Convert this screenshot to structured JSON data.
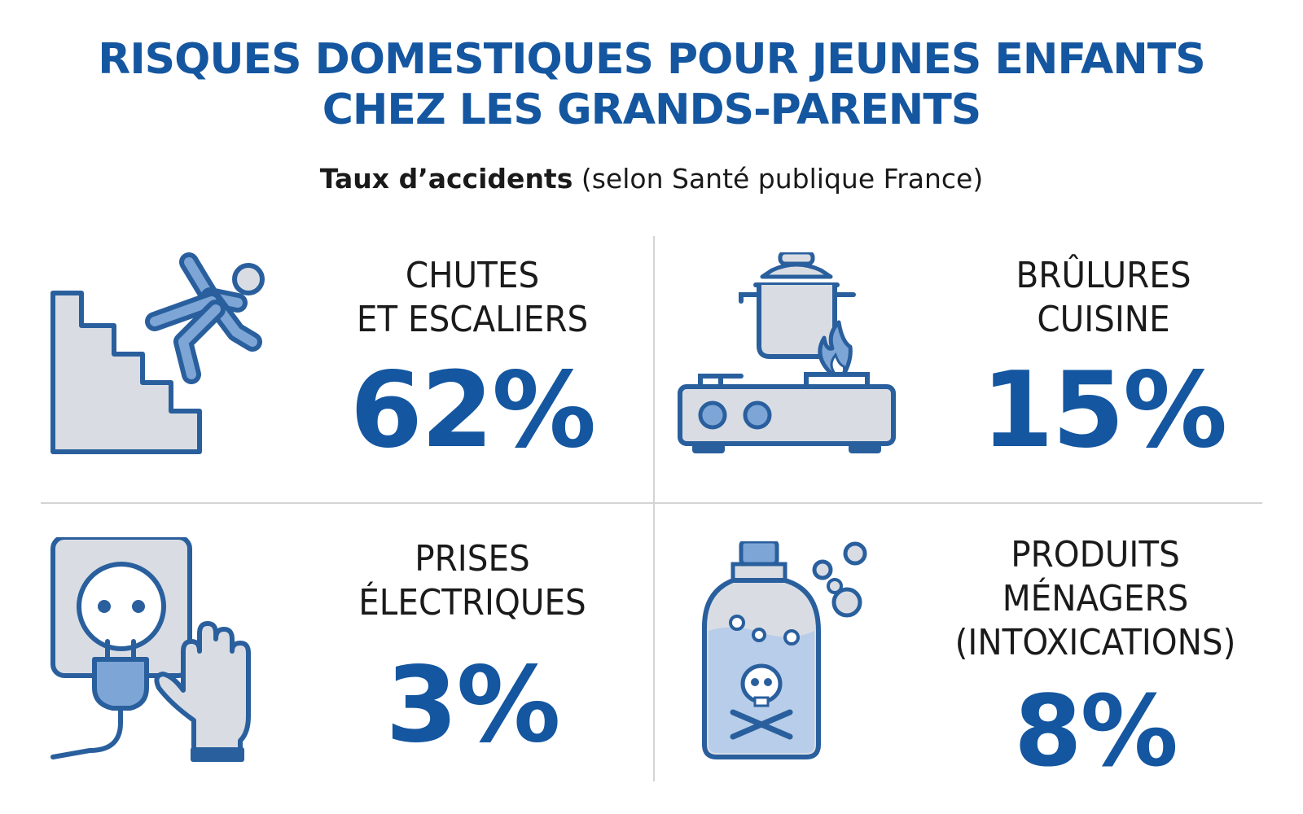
{
  "header": {
    "title_line1": "RISQUES DOMESTIQUES POUR JEUNES ENFANTS",
    "title_line2": "CHEZ LES GRANDS-PARENTS",
    "subtitle_strong": "Taux d’accidents",
    "subtitle_rest": "(selon Santé publique France)"
  },
  "colors": {
    "accent": "#1456a0",
    "icon_fill": "#d9dde3",
    "icon_stroke": "#2a5f9e",
    "divider": "#d4d4d4"
  },
  "risks": [
    {
      "icon": "falling-stairs-icon",
      "label_lines": [
        "CHUTES",
        "ET ESCALIERS"
      ],
      "value": "62%"
    },
    {
      "icon": "stove-pot-flame-icon",
      "label_lines": [
        "BRÛLURES",
        "CUISINE"
      ],
      "value": "15%"
    },
    {
      "icon": "outlet-plug-hand-icon",
      "label_lines": [
        "PRISES",
        "ÉLECTRIQUES"
      ],
      "value": "3%"
    },
    {
      "icon": "poison-bottle-icon",
      "label_lines": [
        "PRODUITS",
        "MÉNAGERS",
        "(INTOXICATIONS)"
      ],
      "value": "8%"
    }
  ]
}
